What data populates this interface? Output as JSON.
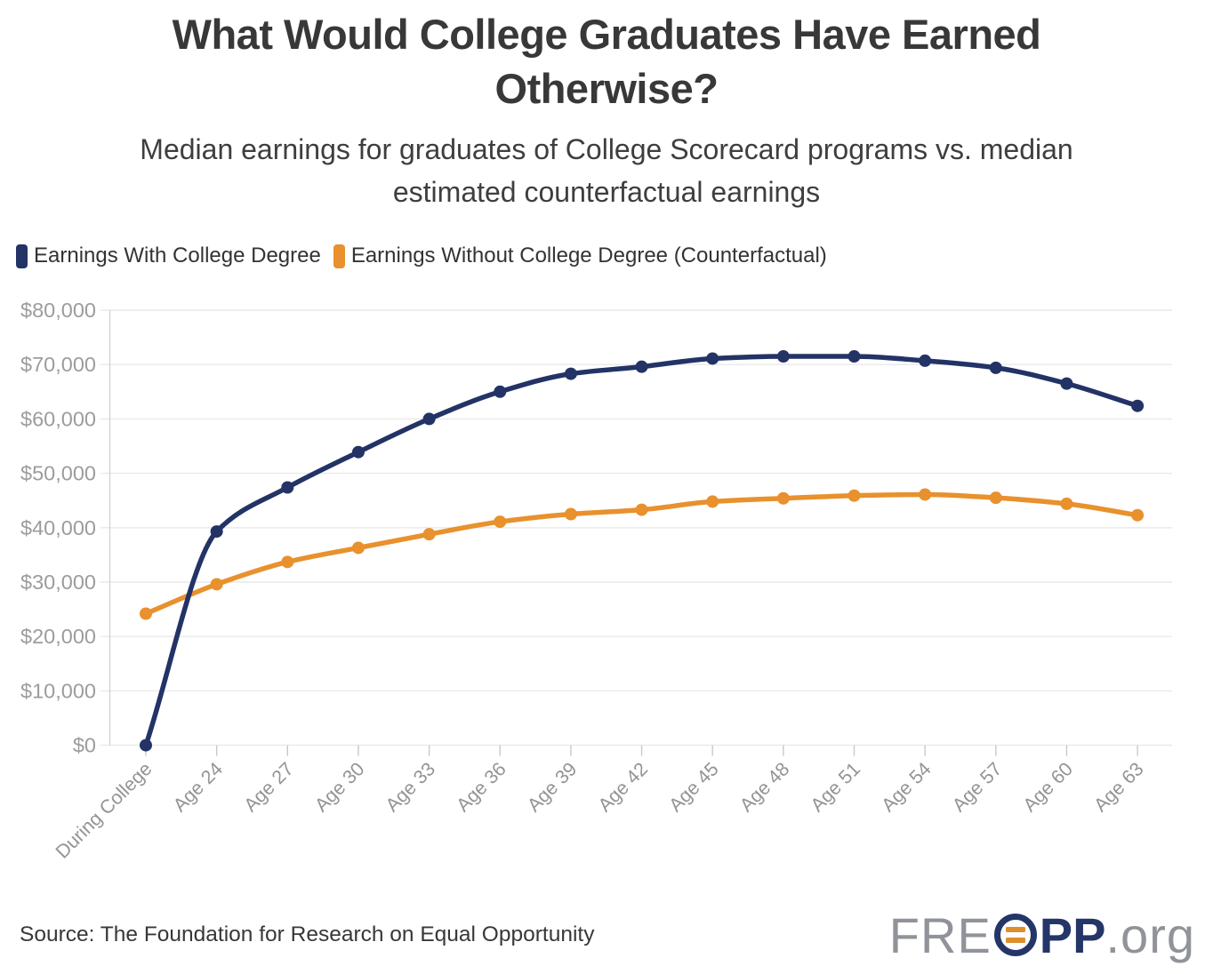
{
  "header": {
    "title": "What Would College Graduates Have Earned Otherwise?",
    "subtitle": "Median earnings for graduates of College Scorecard programs vs. median estimated counterfactual earnings"
  },
  "chart_data": {
    "type": "line",
    "categories": [
      "During College",
      "Age 24",
      "Age 27",
      "Age 30",
      "Age 33",
      "Age 36",
      "Age 39",
      "Age 42",
      "Age 45",
      "Age 48",
      "Age 51",
      "Age 54",
      "Age 57",
      "Age 60",
      "Age 63"
    ],
    "series": [
      {
        "name": "Earnings With College Degree",
        "color": "#233366",
        "values": [
          0,
          39300,
          47400,
          53900,
          60000,
          65000,
          68300,
          69600,
          71100,
          71500,
          71500,
          70700,
          69400,
          66500,
          62400
        ]
      },
      {
        "name": "Earnings Without College Degree (Counterfactual)",
        "color": "#E8912D",
        "values": [
          24200,
          29600,
          33700,
          36300,
          38800,
          41100,
          42500,
          43300,
          44800,
          45400,
          45900,
          46100,
          45500,
          44400,
          42300
        ]
      }
    ],
    "title": "What Would College Graduates Have Earned Otherwise?",
    "xlabel": "",
    "ylabel": "",
    "ylim": [
      0,
      80000
    ],
    "ytick_step": 10000,
    "ytick_prefix": "$",
    "grid": "horizontal",
    "legend_position": "top-left"
  },
  "footer": {
    "source": "Source: The Foundation for Research on Equal Opportunity",
    "logo": {
      "pre": "FRE",
      "bold": "PP",
      "suffix": ".org"
    }
  },
  "colors": {
    "grid": "#e9e9e9",
    "axis_line": "#d4d4d4",
    "tick": "#c9c9c9",
    "y_label": "#9c9c9c",
    "x_label": "#949494",
    "logo_navy": "#243568",
    "logo_orange": "#DD8E2E"
  }
}
